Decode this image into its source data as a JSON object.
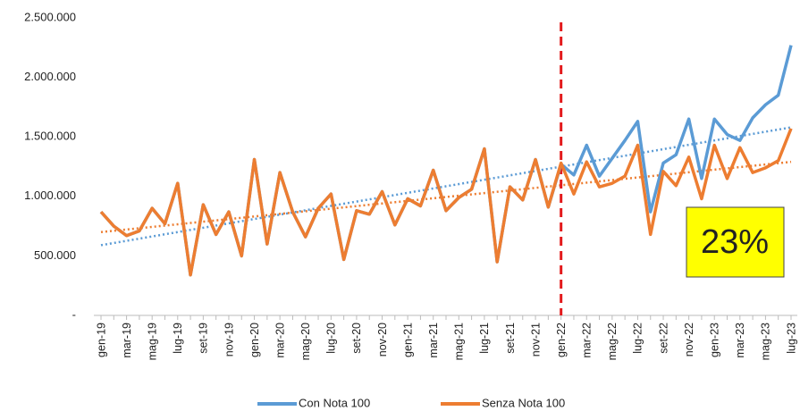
{
  "chart_data": {
    "type": "line",
    "categories": [
      "gen-19",
      null,
      "mar-19",
      null,
      "mag-19",
      null,
      "lug-19",
      null,
      "set-19",
      null,
      "nov-19",
      null,
      "gen-20",
      null,
      "mar-20",
      null,
      "mag-20",
      null,
      "lug-20",
      null,
      "set-20",
      null,
      "nov-20",
      null,
      "gen-21",
      null,
      "mar-21",
      null,
      "mag-21",
      null,
      "lug-21",
      null,
      "set-21",
      null,
      "nov-21",
      null,
      "gen-22",
      null,
      "mar-22",
      null,
      "mag-22",
      null,
      "lug-22",
      null,
      "set-22",
      null,
      "nov-22",
      null,
      "gen-23",
      null,
      "mar-23",
      null,
      "mag-23",
      null,
      "lug-23"
    ],
    "series": [
      {
        "name": "Con Nota 100",
        "color": "#5b9bd5",
        "values": [
          870000,
          750000,
          670000,
          710000,
          900000,
          770000,
          1110000,
          340000,
          930000,
          680000,
          870000,
          500000,
          1310000,
          600000,
          1200000,
          870000,
          660000,
          900000,
          1020000,
          470000,
          880000,
          850000,
          1040000,
          760000,
          980000,
          920000,
          1220000,
          880000,
          990000,
          1060000,
          1400000,
          450000,
          1080000,
          970000,
          1310000,
          910000,
          1270000,
          1180000,
          1430000,
          1170000,
          1320000,
          1470000,
          1630000,
          870000,
          1280000,
          1350000,
          1650000,
          1150000,
          1650000,
          1520000,
          1470000,
          1660000,
          1770000,
          1850000,
          2270000
        ]
      },
      {
        "name": "Senza Nota 100",
        "color": "#ed7d31",
        "values": [
          870000,
          750000,
          670000,
          710000,
          900000,
          770000,
          1110000,
          340000,
          930000,
          680000,
          870000,
          500000,
          1310000,
          600000,
          1200000,
          870000,
          660000,
          900000,
          1020000,
          470000,
          880000,
          850000,
          1040000,
          760000,
          980000,
          920000,
          1220000,
          880000,
          990000,
          1060000,
          1400000,
          450000,
          1080000,
          970000,
          1310000,
          910000,
          1280000,
          1020000,
          1290000,
          1080000,
          1110000,
          1170000,
          1430000,
          680000,
          1210000,
          1090000,
          1330000,
          980000,
          1430000,
          1150000,
          1410000,
          1200000,
          1240000,
          1300000,
          1570000
        ]
      }
    ],
    "trendlines": [
      {
        "color": "#5b9bd5",
        "values": [
          590000,
          1580000
        ]
      },
      {
        "color": "#ed7d31",
        "values": [
          700000,
          1290000
        ]
      }
    ],
    "vline_at": "gen-22",
    "vline_color": "#e31a1c",
    "annotation": "23%",
    "ylim": [
      0,
      2500000
    ],
    "yticks": [
      {
        "value": 0,
        "label": "-"
      },
      {
        "value": 500000,
        "label": "500.000"
      },
      {
        "value": 1000000,
        "label": "1.000.000"
      },
      {
        "value": 1500000,
        "label": "1.500.000"
      },
      {
        "value": 2000000,
        "label": "2.000.000"
      },
      {
        "value": 2500000,
        "label": "2.500.000"
      }
    ],
    "grid": false,
    "legend": "bottom"
  }
}
